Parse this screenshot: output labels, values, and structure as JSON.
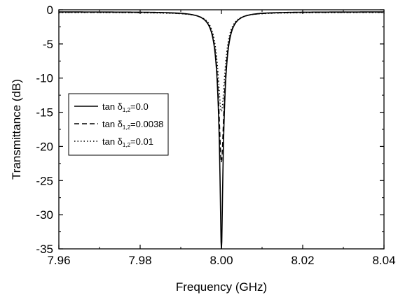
{
  "chart_data": {
    "type": "line",
    "title": "",
    "xlabel": "Frequency (GHz)",
    "ylabel": "Transmittance (dB)",
    "xlim": [
      7.96,
      8.04
    ],
    "ylim": [
      -35,
      0
    ],
    "xticks": [
      7.96,
      7.98,
      8.0,
      8.02,
      8.04
    ],
    "xtick_labels": [
      "7.96",
      "7.98",
      "8.00",
      "8.02",
      "8.04"
    ],
    "yticks": [
      0,
      -5,
      -10,
      -15,
      -20,
      -25,
      -30,
      -35
    ],
    "ytick_labels": [
      "0",
      "-5",
      "-10",
      "-15",
      "-20",
      "-25",
      "-30",
      "-35"
    ],
    "grid": false,
    "legend_position": "left",
    "resonance_ghz": 8.0,
    "series": [
      {
        "name": "tan δ1,2=0.0",
        "legend_main": "tan δ",
        "legend_sub": "1,2",
        "legend_value": "=0.0",
        "style": "solid",
        "min_db": -35,
        "x": [
          7.96,
          7.97,
          7.98,
          7.985,
          7.99,
          7.993,
          7.995,
          7.997,
          7.998,
          7.999,
          7.9995,
          8.0,
          8.0005,
          8.001,
          8.002,
          8.003,
          8.005,
          8.007,
          8.01,
          8.015,
          8.02,
          8.03,
          8.04
        ],
        "y": [
          -0.3,
          -0.4,
          -0.8,
          -1.3,
          -2.6,
          -4.3,
          -6.3,
          -10.5,
          -14.0,
          -20.0,
          -26.0,
          -35.0,
          -26.0,
          -20.0,
          -14.0,
          -10.5,
          -6.3,
          -4.3,
          -2.6,
          -1.3,
          -0.8,
          -0.4,
          -0.3
        ]
      },
      {
        "name": "tan δ1,2=0.0038",
        "legend_main": "tan δ",
        "legend_sub": "1,2",
        "legend_value": "=0.0038",
        "style": "dashed",
        "min_db": -22,
        "x": [
          7.96,
          7.97,
          7.98,
          7.985,
          7.99,
          7.993,
          7.995,
          7.997,
          7.998,
          7.999,
          7.9995,
          8.0,
          8.0005,
          8.001,
          8.002,
          8.003,
          8.005,
          8.007,
          8.01,
          8.015,
          8.02,
          8.03,
          8.04
        ],
        "y": [
          -0.35,
          -0.45,
          -0.9,
          -1.5,
          -2.9,
          -4.7,
          -6.8,
          -11.0,
          -14.3,
          -19.0,
          -21.0,
          -22.0,
          -21.0,
          -19.0,
          -14.3,
          -11.0,
          -6.8,
          -4.7,
          -2.9,
          -1.5,
          -0.9,
          -0.45,
          -0.35
        ]
      },
      {
        "name": "tan δ1,2=0.01",
        "legend_main": "tan δ",
        "legend_sub": "1,2",
        "legend_value": "=0.01",
        "style": "dotted",
        "min_db": -14.5,
        "x": [
          7.96,
          7.97,
          7.98,
          7.985,
          7.99,
          7.993,
          7.995,
          7.997,
          7.998,
          7.999,
          7.9995,
          8.0,
          8.0005,
          8.001,
          8.002,
          8.003,
          8.005,
          8.007,
          8.01,
          8.015,
          8.02,
          8.03,
          8.04
        ],
        "y": [
          -0.4,
          -0.55,
          -1.1,
          -1.8,
          -3.4,
          -5.3,
          -7.5,
          -10.8,
          -12.5,
          -13.9,
          -14.3,
          -14.5,
          -14.3,
          -13.9,
          -12.5,
          -10.8,
          -7.5,
          -5.3,
          -3.4,
          -1.8,
          -1.1,
          -0.55,
          -0.4
        ]
      }
    ]
  }
}
